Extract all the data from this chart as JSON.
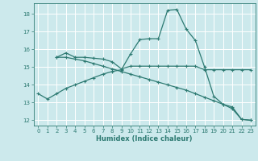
{
  "xlabel": "Humidex (Indice chaleur)",
  "bg_color": "#cce9ec",
  "grid_color": "#ffffff",
  "line_color": "#2d7a72",
  "xlim": [
    -0.5,
    23.5
  ],
  "ylim": [
    11.7,
    18.6
  ],
  "yticks": [
    12,
    13,
    14,
    15,
    16,
    17,
    18
  ],
  "xticks": [
    0,
    1,
    2,
    3,
    4,
    5,
    6,
    7,
    8,
    9,
    10,
    11,
    12,
    13,
    14,
    15,
    16,
    17,
    18,
    19,
    20,
    21,
    22,
    23
  ],
  "line1_x": [
    0,
    1,
    2,
    3,
    4,
    5,
    6,
    7,
    8,
    9,
    10,
    11,
    12,
    13,
    14,
    15,
    16,
    17,
    18,
    19,
    20,
    21,
    22,
    23
  ],
  "line1_y": [
    13.5,
    13.2,
    13.5,
    13.8,
    14.0,
    14.2,
    14.4,
    14.6,
    14.75,
    14.85,
    15.75,
    16.55,
    16.6,
    16.6,
    18.2,
    18.25,
    17.15,
    16.5,
    15.0,
    13.35,
    12.9,
    12.75,
    12.05,
    12.0
  ],
  "line2_x": [
    2,
    3,
    4,
    5,
    6,
    7,
    8,
    9,
    10,
    11,
    12,
    13,
    14,
    15,
    16,
    17,
    18,
    19,
    20,
    21,
    22,
    23
  ],
  "line2_y": [
    15.55,
    15.8,
    15.55,
    15.55,
    15.5,
    15.45,
    15.3,
    14.9,
    15.05,
    15.05,
    15.05,
    15.05,
    15.05,
    15.05,
    15.05,
    15.05,
    14.85,
    14.85,
    14.85,
    14.85,
    14.85,
    14.85
  ],
  "line3_x": [
    2,
    3,
    4,
    5,
    6,
    7,
    8,
    9,
    10,
    11,
    12,
    13,
    14,
    15,
    16,
    17,
    18,
    19,
    20,
    21,
    22,
    23
  ],
  "line3_y": [
    15.55,
    15.55,
    15.45,
    15.35,
    15.2,
    15.05,
    14.9,
    14.75,
    14.6,
    14.45,
    14.3,
    14.15,
    14.0,
    13.85,
    13.7,
    13.5,
    13.3,
    13.1,
    12.9,
    12.65,
    12.05,
    12.0
  ]
}
